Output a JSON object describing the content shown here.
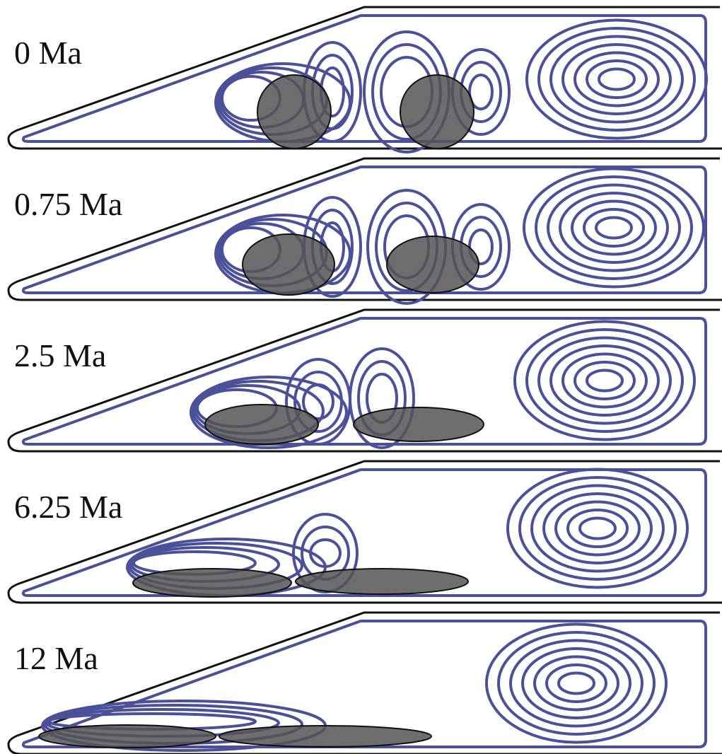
{
  "panels": [
    {
      "label": "0 Ma"
    },
    {
      "label": "0.75 Ma"
    },
    {
      "label": "2.5 Ma"
    },
    {
      "label": "6.25 Ma"
    },
    {
      "label": "12 Ma"
    }
  ]
}
